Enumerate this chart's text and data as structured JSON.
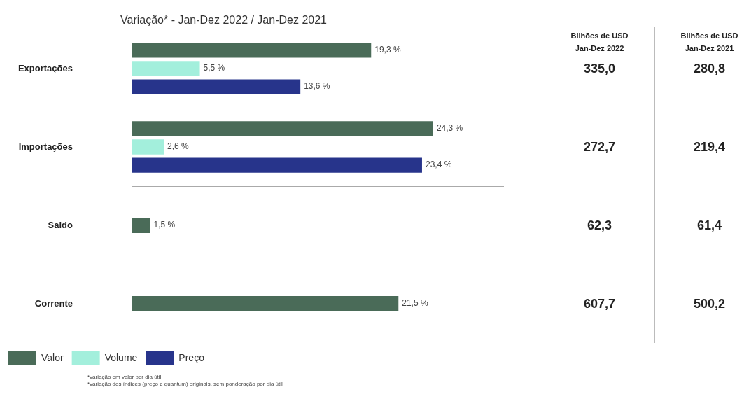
{
  "chart_data": [
    {
      "type": "bar",
      "orientation": "horizontal",
      "title": "Variação* - Jan-Dez 2022 / Jan-Dez 2021",
      "categories": [
        "Exportações",
        "Importações",
        "Saldo",
        "Corrente"
      ],
      "series": [
        {
          "name": "Valor",
          "color": "#4a6b58",
          "values": [
            19.3,
            24.3,
            1.5,
            21.5
          ],
          "value_labels": [
            "19,3 %",
            "24,3 %",
            "1,5 %",
            "21,5 %"
          ]
        },
        {
          "name": "Volume",
          "color": "#a3efdc",
          "values": [
            5.5,
            2.6,
            null,
            null
          ],
          "value_labels": [
            "5,5 %",
            "2,6 %",
            null,
            null
          ]
        },
        {
          "name": "Preço",
          "color": "#27348b",
          "values": [
            13.6,
            23.4,
            null,
            null
          ],
          "value_labels": [
            "13,6 %",
            "23,4 %",
            null,
            null
          ]
        }
      ],
      "grid": "y",
      "legend": "bottom left",
      "tick_labels": "y",
      "annotations": [
        "*variação em valor por dia útil",
        "*variação dos índices (preço e quantum) originais, sem ponderação por dia útil"
      ]
    },
    {
      "type": "other",
      "annotations": [
        "Bilhões de USD Jan-Dez 2022",
        "335,0",
        "272,7",
        "62,3",
        "607,7",
        "Bilhões de USD Jan-Dez 2021",
        "280,8",
        "219,4",
        "61,4",
        "500,2"
      ]
    }
  ]
}
